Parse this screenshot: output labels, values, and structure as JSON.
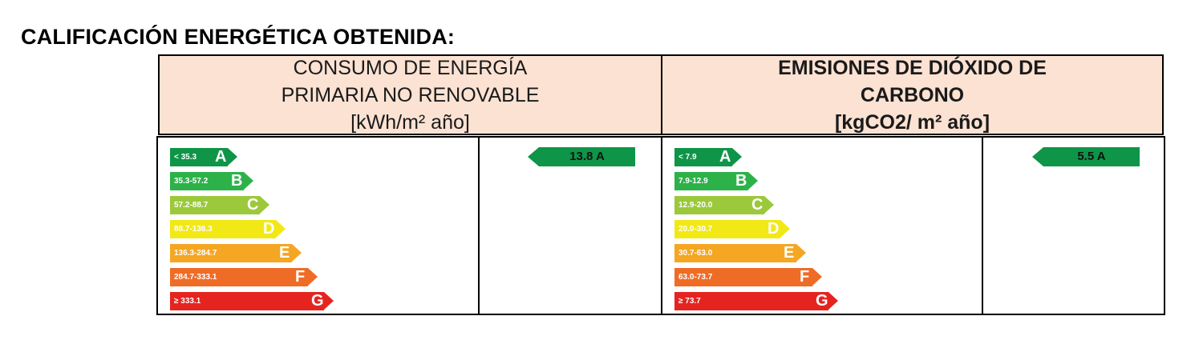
{
  "title": "CALIFICACIÓN ENERGÉTICA OBTENIDA:",
  "energy": {
    "header": [
      "CONSUMO DE ENERGÍA",
      "PRIMARIA NO RENOVABLE",
      "[kWh/m² año]"
    ],
    "rating_value": "13.8 A",
    "rating_color": "#0e9548",
    "bars": [
      {
        "range": "< 35.3",
        "letter": "A",
        "color": "#0e9548"
      },
      {
        "range": "35.3-57.2",
        "letter": "B",
        "color": "#2db24a"
      },
      {
        "range": "57.2-88.7",
        "letter": "C",
        "color": "#9bc93b"
      },
      {
        "range": "88.7-136.3",
        "letter": "D",
        "color": "#f2e816"
      },
      {
        "range": "136.3-284.7",
        "letter": "E",
        "color": "#f5a623"
      },
      {
        "range": "284.7-333.1",
        "letter": "F",
        "color": "#ef6c27"
      },
      {
        "range": "≥ 333.1",
        "letter": "G",
        "color": "#e52420"
      }
    ]
  },
  "emissions": {
    "header": [
      "EMISIONES DE DIÓXIDO DE",
      "CARBONO",
      "[kgCO2/ m² año]"
    ],
    "rating_value": "5.5 A",
    "rating_color": "#0e9548",
    "bars": [
      {
        "range": "< 7.9",
        "letter": "A",
        "color": "#0e9548"
      },
      {
        "range": "7.9-12.9",
        "letter": "B",
        "color": "#2db24a"
      },
      {
        "range": "12.9-20.0",
        "letter": "C",
        "color": "#9bc93b"
      },
      {
        "range": "20.0-30.7",
        "letter": "D",
        "color": "#f2e816"
      },
      {
        "range": "30.7-63.0",
        "letter": "E",
        "color": "#f5a623"
      },
      {
        "range": "63.0-73.7",
        "letter": "F",
        "color": "#ef6c27"
      },
      {
        "range": "≥ 73.7",
        "letter": "G",
        "color": "#e52420"
      }
    ]
  }
}
